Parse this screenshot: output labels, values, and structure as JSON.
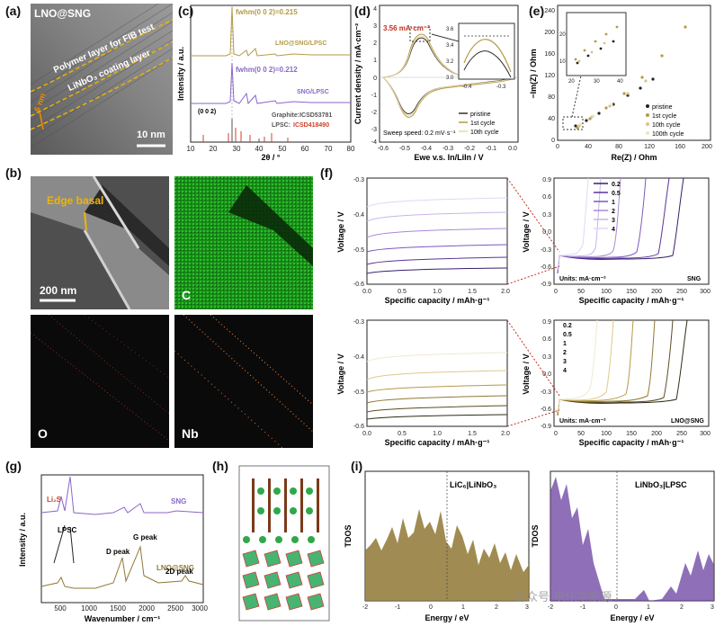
{
  "panels": {
    "a": "(a)",
    "b": "(b)",
    "c": "(c)",
    "d": "(d)",
    "e": "(e)",
    "f": "(f)",
    "g": "(g)",
    "h": "(h)",
    "i": "(i)"
  },
  "panel_a": {
    "sample": "LNO@SNG",
    "layer_polymer": "Polymer layer for FIB test",
    "layer_coating": "LiNbO₃ coating layer",
    "thickness": "6 nm",
    "scalebar": "10 nm"
  },
  "panel_b": {
    "annotation": "Edge basal",
    "scalebar": "200 nm",
    "map_c": "C",
    "map_o": "O",
    "map_nb": "Nb"
  },
  "panel_c": {
    "ylabel": "Intensity / a.u.",
    "xlabel": "2θ / °",
    "xticks": [
      "10",
      "20",
      "30",
      "40",
      "50",
      "60",
      "70",
      "80"
    ],
    "fwhm_top": "fwhm(0 0 2)=0.215",
    "fwhm_mid": "fwhm(0 0 2)=0.212",
    "trace_top": "LNO@SNG/LPSC",
    "trace_mid": "SNG/LPSC",
    "ref_graphite": "Graphite:ICSD53781",
    "ref_lpsc_prefix": "LPSC:",
    "ref_lpsc_id": "ICSD418490",
    "peak_label": "(0 0 2)"
  },
  "panel_d": {
    "ylabel": "Current density / mA·cm⁻²",
    "xlabel": "Ewe v.s. In/LiIn / V",
    "xticks": [
      "-0.6",
      "-0.5",
      "-0.4",
      "-0.3",
      "-0.2",
      "-0.1",
      "0.0"
    ],
    "yticks": [
      "4",
      "3",
      "2",
      "1",
      "0",
      "-1",
      "-2",
      "-3",
      "-4"
    ],
    "peak_current": "3.56 mA·cm⁻²",
    "sweep": "Sweep speed: 0.2 mV·s⁻¹",
    "legend": [
      "pristine",
      "1st cycle",
      "10th cycle"
    ],
    "inset_xticks": [
      "-0.4",
      "-0.3"
    ],
    "inset_yticks": [
      "3.6",
      "3.4",
      "3.2",
      "3.0"
    ]
  },
  "panel_e": {
    "ylabel": "−Im(Z) / Ohm",
    "xlabel": "Re(Z) / Ohm",
    "xticks": [
      "0",
      "40",
      "80",
      "120",
      "160",
      "200"
    ],
    "yticks": [
      "0",
      "40",
      "80",
      "120",
      "160",
      "200",
      "240"
    ],
    "legend": [
      "pristine",
      "1st cycle",
      "10th cycle",
      "100th cycle"
    ],
    "inset_xticks": [
      "20",
      "30",
      "40"
    ],
    "inset_yticks": [
      "20",
      "10"
    ]
  },
  "panel_f": {
    "ylabel": "Voltage / V",
    "xlabel": "Specific capacity / mAh·g⁻¹",
    "zoom_yticks": [
      "-0.3",
      "-0.4",
      "-0.5",
      "-0.6"
    ],
    "zoom_xticks": [
      "0.0",
      "0.5",
      "1.0",
      "1.5",
      "2.0"
    ],
    "full_yticks": [
      "0.9",
      "0.6",
      "0.3",
      "0.0",
      "-0.3",
      "-0.6",
      "-0.9"
    ],
    "full_xticks": [
      "0",
      "50",
      "100",
      "150",
      "200",
      "250",
      "300"
    ],
    "rates": [
      "0.2",
      "0.5",
      "1",
      "2",
      "3",
      "4"
    ],
    "units": "Units: mA·cm⁻²",
    "sample_top": "SNG",
    "sample_bottom": "LNO@SNG"
  },
  "panel_g": {
    "ylabel": "Intensity / a.u.",
    "xlabel": "Wavenumber / cm⁻¹",
    "xticks": [
      "500",
      "1000",
      "1500",
      "2000",
      "2500",
      "3000"
    ],
    "trace_top": "SNG",
    "trace_bottom": "LNO@SNG",
    "li2s": "Li₂S",
    "lpsc": "LPSC",
    "d_peak": "D peak",
    "g_peak": "G peak",
    "peak_2d": "2D peak"
  },
  "panel_i": {
    "left_title": "LiC₆|LiNbO₃",
    "right_title": "LiNbO₃|LPSC",
    "ylabel": "TDOS",
    "xlabel": "Energy / eV",
    "xticks": [
      "-2",
      "-1",
      "0",
      "1",
      "2",
      "3"
    ],
    "watermark": "公众号·电化学能源"
  },
  "colors": {
    "lno": "#b59a45",
    "sng": "#8a67c9",
    "lpsc": "#d0402c",
    "green_map": "#2dbd2d",
    "dos_left": "#7a6326",
    "dos_right": "#6a3fa0"
  }
}
